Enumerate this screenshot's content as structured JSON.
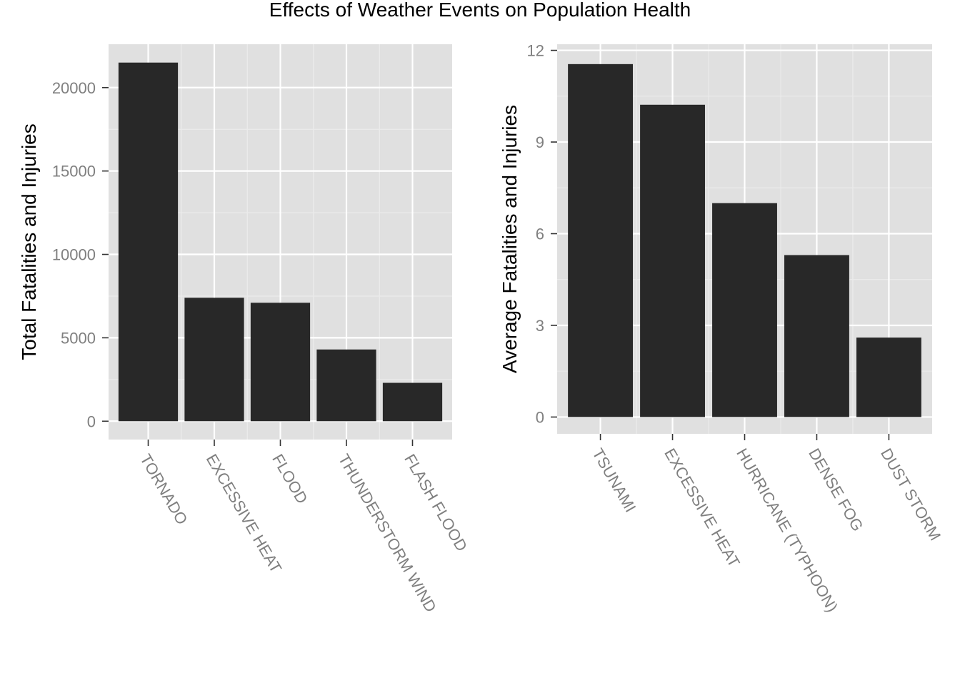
{
  "title": "Effects of Weather Events on Population Health",
  "colors": {
    "panel_bg": "#e0e0e0",
    "grid_major": "#ffffff",
    "grid_minor": "#ebebeb",
    "bar": "#282828",
    "tick_text": "#7f7f7f"
  },
  "chart_data": [
    {
      "type": "bar",
      "title": "",
      "xlabel": "",
      "ylabel": "Total Fatalities and Injuries",
      "categories": [
        "TORNADO",
        "EXCESSIVE HEAT",
        "FLOOD",
        "THUNDERSTORM WIND",
        "FLASH FLOOD"
      ],
      "values": [
        21500,
        7400,
        7100,
        4300,
        2300
      ],
      "ylim": [
        -1100,
        22600
      ],
      "yticks": [
        0,
        5000,
        10000,
        15000,
        20000
      ],
      "ytick_labels": [
        "0",
        "5000",
        "10000",
        "15000",
        "20000"
      ],
      "grid": true,
      "legend": "none"
    },
    {
      "type": "bar",
      "title": "",
      "xlabel": "",
      "ylabel": "Average Fatalities and Injuries",
      "categories": [
        "TSUNAMI",
        "EXCESSIVE HEAT",
        "HURRICANE (TYPHOON)",
        "DENSE FOG",
        "DUST STORM"
      ],
      "values": [
        11.55,
        10.22,
        7.0,
        5.3,
        2.6
      ],
      "ylim": [
        -0.55,
        12.2
      ],
      "yticks": [
        0,
        3,
        6,
        9,
        12
      ],
      "ytick_labels": [
        "0",
        "3",
        "6",
        "9",
        "12"
      ],
      "grid": true,
      "legend": "none"
    }
  ]
}
